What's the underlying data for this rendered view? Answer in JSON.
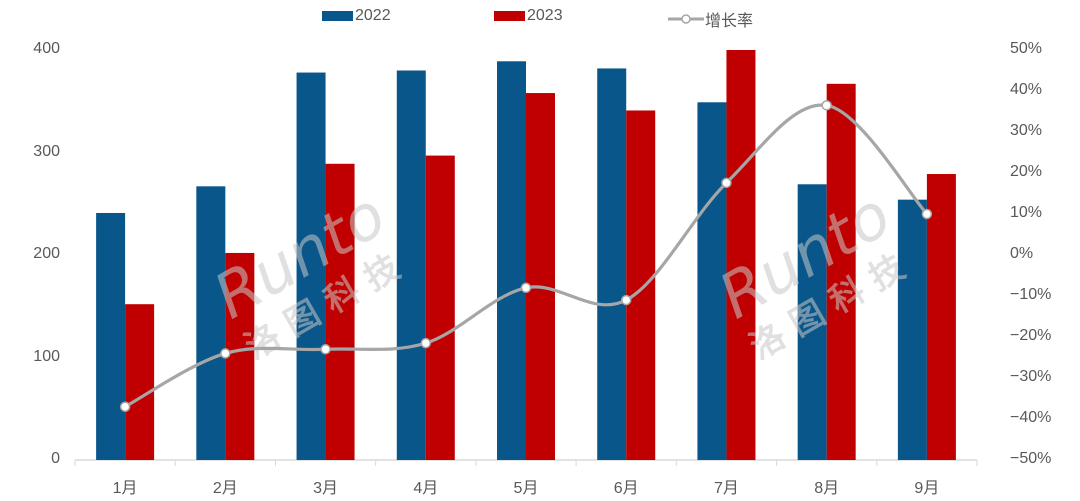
{
  "chart_data": {
    "type": "bar",
    "title": "",
    "xlabel": "",
    "ylabel": "",
    "categories": [
      "1月",
      "2月",
      "3月",
      "4月",
      "5月",
      "6月",
      "7月",
      "8月",
      "9月"
    ],
    "series": [
      {
        "name": "2022",
        "type": "bar",
        "axis": "left",
        "color": "#08568A",
        "values": [
          241,
          267,
          378,
          380,
          389,
          382,
          349,
          269,
          254
        ]
      },
      {
        "name": "2023",
        "type": "bar",
        "axis": "left",
        "color": "#C00000",
        "values": [
          152,
          202,
          289,
          297,
          358,
          341,
          400,
          367,
          279
        ]
      },
      {
        "name": "增长率",
        "type": "line",
        "axis": "right",
        "color": "#A6A6A6",
        "smooth": true,
        "marker": "circle-white",
        "values": [
          -37,
          -24,
          -23,
          -21.5,
          -8,
          -11,
          17.6,
          36.5,
          10
        ]
      }
    ],
    "ylim": [
      0,
      400
    ],
    "y_ticks": [
      "0",
      "100",
      "200",
      "300",
      "400"
    ],
    "y2lim": [
      -50,
      50
    ],
    "y2_ticks": [
      "50%",
      "40%",
      "30%",
      "20%",
      "10%",
      "0%",
      "−10%",
      "−20%",
      "−30%",
      "−40%",
      "−50%"
    ],
    "grid": false,
    "legend_position": "top",
    "watermark": "Runto 洛图科技"
  },
  "legend": [
    {
      "label": "2022",
      "color": "#08568A"
    },
    {
      "label": "2023",
      "color": "#C00000"
    },
    {
      "label": "增长率",
      "color": "#A6A6A6"
    }
  ],
  "axis_color": "#D9D9D9",
  "watermark_text": {
    "latin": "Runto",
    "cn": "洛 图 科 技"
  }
}
